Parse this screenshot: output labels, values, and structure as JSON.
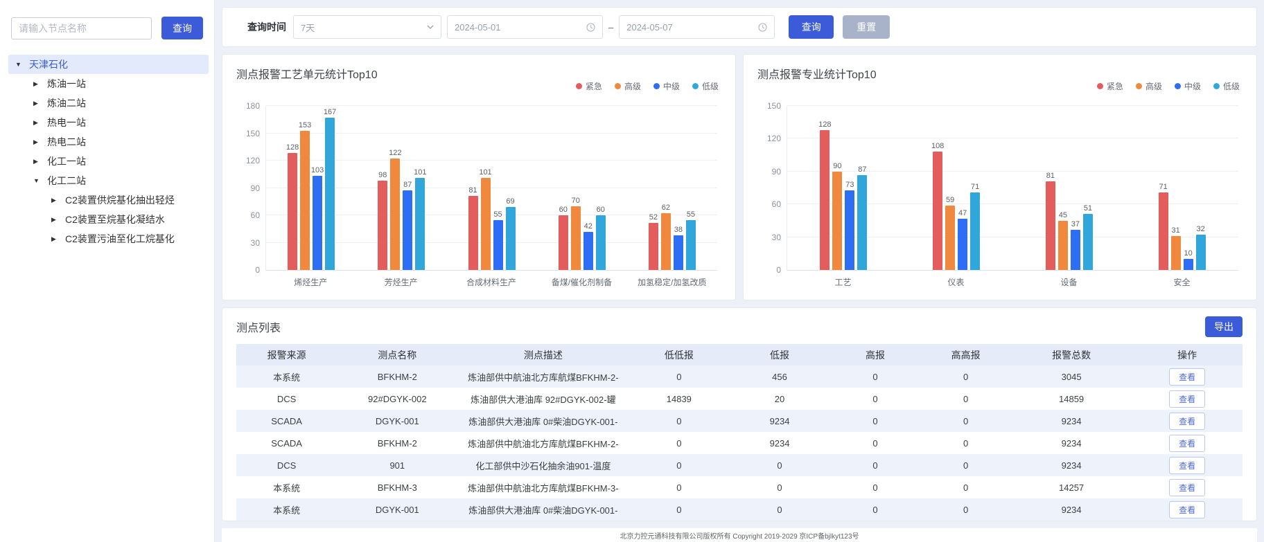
{
  "colors": {
    "accent": "#3c5bd8",
    "reset_button": "#a8b3c9",
    "tree_selected_bg": "#e2eafb",
    "table_header_bg": "#e5ebf9",
    "table_stripe_bg": "#eef2fb"
  },
  "sidebar": {
    "search": {
      "placeholder": "请输入节点名称",
      "button": "查询"
    },
    "tree": [
      {
        "label": "天津石化",
        "level": 0,
        "expanded": true,
        "selected": true
      },
      {
        "label": "炼油一站",
        "level": 1,
        "expanded": false
      },
      {
        "label": "炼油二站",
        "level": 1,
        "expanded": false
      },
      {
        "label": "热电一站",
        "level": 1,
        "expanded": false
      },
      {
        "label": "热电二站",
        "level": 1,
        "expanded": false
      },
      {
        "label": "化工一站",
        "level": 1,
        "expanded": false
      },
      {
        "label": "化工二站",
        "level": 1,
        "expanded": true
      },
      {
        "label": "C2装置供烷基化抽出轻烃",
        "level": 2,
        "expanded": false
      },
      {
        "label": "C2装置至烷基化凝结水",
        "level": 2,
        "expanded": false
      },
      {
        "label": "C2装置污油至化工烷基化",
        "level": 2,
        "expanded": false
      }
    ]
  },
  "toolbar": {
    "time_label": "查询时间",
    "range_select": "7天",
    "date_from": "2024-05-01",
    "date_to": "2024-05-07",
    "separator": "–",
    "query_button": "查询",
    "reset_button": "重置"
  },
  "chart_data": [
    {
      "type": "bar",
      "title": "测点报警工艺单元统计Top10",
      "categories": [
        "烯烃生产",
        "芳烃生产",
        "合成材料生产",
        "备煤/催化剂制备",
        "加氢稳定/加氢改质"
      ],
      "series": [
        {
          "name": "紧急",
          "color": "#e35d5d",
          "values": [
            128,
            98,
            81,
            60,
            52
          ]
        },
        {
          "name": "高级",
          "color": "#f0883e",
          "values": [
            153,
            122,
            101,
            70,
            62
          ]
        },
        {
          "name": "中级",
          "color": "#2e6ef5",
          "values": [
            103,
            87,
            55,
            42,
            38
          ]
        },
        {
          "name": "低级",
          "color": "#31a6da",
          "values": [
            167,
            101,
            69,
            60,
            55
          ]
        }
      ],
      "xlabel": "",
      "ylabel": "",
      "ylim": [
        0,
        180
      ],
      "ytick_step": 30,
      "grid": true,
      "legend_position": "top-right",
      "value_labels": true
    },
    {
      "type": "bar",
      "title": "测点报警专业统计Top10",
      "categories": [
        "工艺",
        "仪表",
        "设备",
        "安全"
      ],
      "series": [
        {
          "name": "紧急",
          "color": "#e35d5d",
          "values": [
            128,
            108,
            81,
            71
          ]
        },
        {
          "name": "高级",
          "color": "#f0883e",
          "values": [
            90,
            59,
            45,
            31
          ]
        },
        {
          "name": "中级",
          "color": "#2e6ef5",
          "values": [
            73,
            47,
            37,
            10
          ]
        },
        {
          "name": "低级",
          "color": "#31a6da",
          "values": [
            87,
            71,
            51,
            32
          ]
        }
      ],
      "xlabel": "",
      "ylabel": "",
      "ylim": [
        0,
        150
      ],
      "ytick_step": 30,
      "grid": true,
      "legend_position": "top-right",
      "value_labels": true
    }
  ],
  "table": {
    "title": "测点列表",
    "export_button": "导出",
    "columns": [
      "报警来源",
      "测点名称",
      "测点描述",
      "低低报",
      "低报",
      "高报",
      "高高报",
      "报警总数",
      "操作"
    ],
    "action_label": "查看",
    "rows": [
      [
        "本系统",
        "BFKHM-2",
        "炼油部供中航油北方库航煤BFKHM-2-",
        "0",
        "456",
        "0",
        "0",
        "3045"
      ],
      [
        "DCS",
        "92#DGYK-002",
        "炼油部供大港油库 92#DGYK-002-罐",
        "14839",
        "20",
        "0",
        "0",
        "14859"
      ],
      [
        "SCADA",
        "DGYK-001",
        "炼油部供大港油库 0#柴油DGYK-001-",
        "0",
        "9234",
        "0",
        "0",
        "9234"
      ],
      [
        "SCADA",
        "BFKHM-2",
        "炼油部供中航油北方库航煤BFKHM-2-",
        "0",
        "9234",
        "0",
        "0",
        "9234"
      ],
      [
        "DCS",
        "901",
        "化工部供中沙石化抽余油901-温度",
        "0",
        "0",
        "0",
        "0",
        "9234"
      ],
      [
        "本系统",
        "BFKHM-3",
        "炼油部供中航油北方库航煤BFKHM-3-",
        "0",
        "0",
        "0",
        "0",
        "14257"
      ],
      [
        "本系统",
        "DGYK-001",
        "炼油部供大港油库 0#柴油DGYK-001-",
        "0",
        "0",
        "0",
        "0",
        "9234"
      ]
    ]
  },
  "footer": {
    "text": "北京力控元通科技有限公司版权所有 Copyright 2019-2029 京ICP备bjlkyt123号"
  }
}
